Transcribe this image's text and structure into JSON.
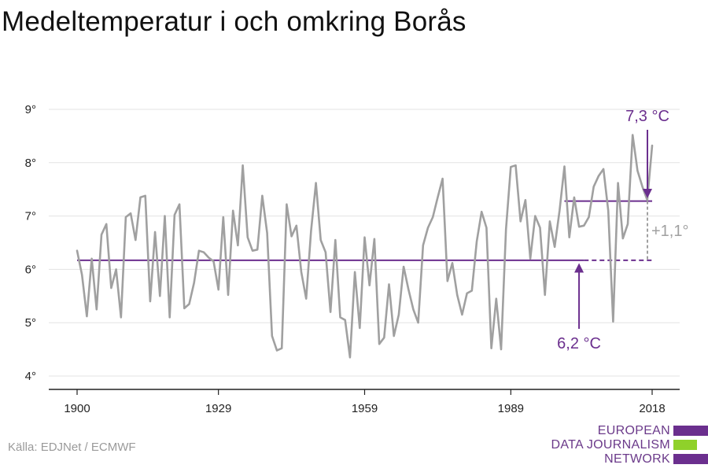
{
  "title": "Medeltemperatur i och omkring Borås",
  "source": "Källa: EDJNet / ECMWF",
  "logo": {
    "lines": [
      "EUROPEAN",
      "DATA JOURNALISM",
      "NETWORK"
    ],
    "colors": {
      "text": "#6b3a8a",
      "bar_purple": "#6b2f8e",
      "bar_green": "#8fd12a"
    }
  },
  "colors": {
    "series": "#a0a0a0",
    "reference": "#6b2f8e",
    "axis": "#222222",
    "grid": "#e3e3e3",
    "delta": "#a0a0a0"
  },
  "chart_data": {
    "type": "line",
    "title": "Medeltemperatur i och omkring Borås",
    "xlabel": "",
    "ylabel": "",
    "xlim": [
      1900,
      2018
    ],
    "ylim": [
      4,
      9
    ],
    "x_ticks": [
      1900,
      1929,
      1959,
      1989,
      2018
    ],
    "y_ticks": [
      {
        "value": 4,
        "label": "4°"
      },
      {
        "value": 5,
        "label": "5°"
      },
      {
        "value": 6,
        "label": "6°"
      },
      {
        "value": 7,
        "label": "7°"
      },
      {
        "value": 8,
        "label": "8°"
      },
      {
        "value": 9,
        "label": "9°"
      }
    ],
    "grid": true,
    "series": [
      {
        "x": [
          1900,
          1901,
          1902,
          1903,
          1904,
          1905,
          1906,
          1907,
          1908,
          1909,
          1910,
          1911,
          1912,
          1913,
          1914,
          1915,
          1916,
          1917,
          1918,
          1919,
          1920,
          1921,
          1922,
          1923,
          1924,
          1925,
          1926,
          1927,
          1928,
          1929,
          1930,
          1931,
          1932,
          1933,
          1934,
          1935,
          1936,
          1937,
          1938,
          1939,
          1940,
          1941,
          1942,
          1943,
          1944,
          1945,
          1946,
          1947,
          1948,
          1949,
          1950,
          1951,
          1952,
          1953,
          1954,
          1955,
          1956,
          1957,
          1958,
          1959,
          1960,
          1961,
          1962,
          1963,
          1964,
          1965,
          1966,
          1967,
          1968,
          1969,
          1970,
          1971,
          1972,
          1973,
          1974,
          1975,
          1976,
          1977,
          1978,
          1979,
          1980,
          1981,
          1982,
          1983,
          1984,
          1985,
          1986,
          1987,
          1988,
          1989,
          1990,
          1991,
          1992,
          1993,
          1994,
          1995,
          1996,
          1997,
          1998,
          1999,
          2000,
          2001,
          2002,
          2003,
          2004,
          2005,
          2006,
          2007,
          2008,
          2009,
          2010,
          2011,
          2012,
          2013,
          2014,
          2015,
          2016,
          2017,
          2018
        ],
        "y": [
          6.35,
          5.9,
          5.12,
          6.2,
          5.25,
          6.65,
          6.85,
          5.65,
          6.0,
          5.1,
          6.98,
          7.05,
          6.55,
          7.35,
          7.38,
          5.4,
          6.7,
          5.5,
          7.0,
          5.1,
          7.02,
          7.22,
          5.27,
          5.35,
          5.75,
          6.35,
          6.32,
          6.22,
          6.15,
          5.62,
          6.98,
          5.52,
          7.1,
          6.45,
          7.95,
          6.6,
          6.35,
          6.37,
          7.38,
          6.68,
          4.75,
          4.48,
          4.52,
          7.22,
          6.62,
          6.82,
          5.95,
          5.45,
          6.72,
          7.62,
          6.55,
          6.32,
          5.2,
          6.55,
          5.1,
          5.05,
          4.35,
          5.95,
          4.9,
          6.6,
          5.7,
          6.57,
          4.6,
          4.72,
          5.72,
          4.75,
          5.15,
          6.05,
          5.62,
          5.25,
          5.0,
          6.45,
          6.78,
          6.98,
          7.35,
          7.7,
          5.78,
          6.12,
          5.52,
          5.15,
          5.55,
          5.6,
          6.52,
          7.08,
          6.78,
          4.52,
          5.45,
          4.5,
          6.75,
          7.92,
          7.95,
          6.9,
          7.3,
          6.2,
          7.0,
          6.78,
          5.52,
          6.9,
          6.42,
          7.1,
          7.93,
          6.6,
          7.35,
          6.8,
          6.82,
          6.98,
          7.55,
          7.75,
          7.88,
          7.1,
          5.02,
          7.62,
          6.58,
          6.85,
          8.52,
          7.85,
          7.55,
          7.3,
          8.32
        ]
      }
    ],
    "reference_lines": [
      {
        "label": "6,2 °C",
        "value": 6.17,
        "from": 1900,
        "to": 2018
      },
      {
        "label": "7,3 °C",
        "value": 7.28,
        "from": 2000,
        "to": 2018
      }
    ],
    "annotations": [
      {
        "text": "7,3 °C",
        "year": 2018,
        "value": 7.28
      },
      {
        "text": "6,2 °C",
        "year": 2003,
        "value": 6.17
      },
      {
        "text": "+1,1°",
        "year": 2018
      }
    ]
  }
}
